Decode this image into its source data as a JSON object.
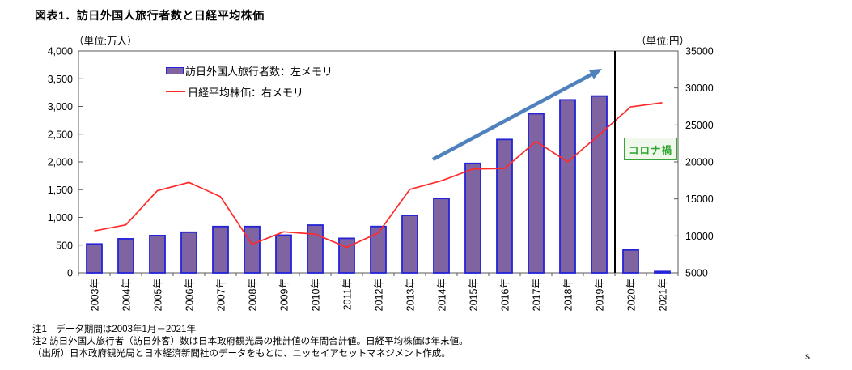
{
  "chart_data": {
    "type": "combo",
    "title": "図表1．訪日外国人旅行者数と日経平均株価",
    "categories": [
      "2003年",
      "2004年",
      "2005年",
      "2006年",
      "2007年",
      "2008年",
      "2009年",
      "2010年",
      "2011年",
      "2012年",
      "2013年",
      "2014年",
      "2015年",
      "2016年",
      "2017年",
      "2018年",
      "2019年",
      "2020年",
      "2021年"
    ],
    "series": [
      {
        "name": "訪日外国人旅行者数：左メモリ",
        "type": "bar",
        "axis": "left",
        "values": [
          521,
          614,
          673,
          733,
          835,
          835,
          679,
          861,
          622,
          836,
          1036,
          1341,
          1974,
          2404,
          2869,
          3119,
          3188,
          412,
          25
        ],
        "fill": "#8064A2",
        "stroke": "#2323D7"
      },
      {
        "name": "日経平均株価：右メモリ",
        "type": "line",
        "axis": "right",
        "values": [
          10677,
          11489,
          16111,
          17226,
          15308,
          8860,
          10546,
          10229,
          8455,
          10395,
          16291,
          17451,
          19034,
          19114,
          22765,
          20015,
          23657,
          27444,
          28000
        ],
        "stroke": "#FF2A2A"
      }
    ],
    "left_axis": {
      "unit": "（単位:万人）",
      "min": 0,
      "max": 4000,
      "ticks": [
        "4,000",
        "3,500",
        "3,000",
        "2,500",
        "2,000",
        "1,500",
        "1,000",
        "500",
        "0"
      ]
    },
    "right_axis": {
      "unit": "（単位:円）",
      "min": 5000,
      "max": 35000,
      "ticks": [
        "35000",
        "30000",
        "25000",
        "20000",
        "15000",
        "10000",
        "5000"
      ]
    },
    "grid": false,
    "legend_position": "top-inside",
    "annotations": {
      "corona_box": {
        "label": "コロナ禍",
        "border": "#3AA23A",
        "bg": "#F0F8EC",
        "text_color": "#2DA52D"
      },
      "divider_after_category": "2019年",
      "trend_arrow_color": "#4F81BD"
    }
  },
  "legend": {
    "items": [
      {
        "label": "訪日外国人旅行者数：左メモリ",
        "swatch": "bar"
      },
      {
        "label": "日経平均株価：右メモリ",
        "swatch": "line"
      }
    ]
  },
  "notes": {
    "note1": "注1　データ期間は2003年1月－2021年",
    "note2": "注2 訪日外国人旅行者（訪日外客）数は日本政府観光局の推計値の年間合計値。日経平均株価は年末値。",
    "note3": "（出所）日本政府観光局と日本経済新聞社のデータをもとに、ニッセイアセットマネジメント作成。"
  },
  "footer": {
    "mark": "s"
  }
}
